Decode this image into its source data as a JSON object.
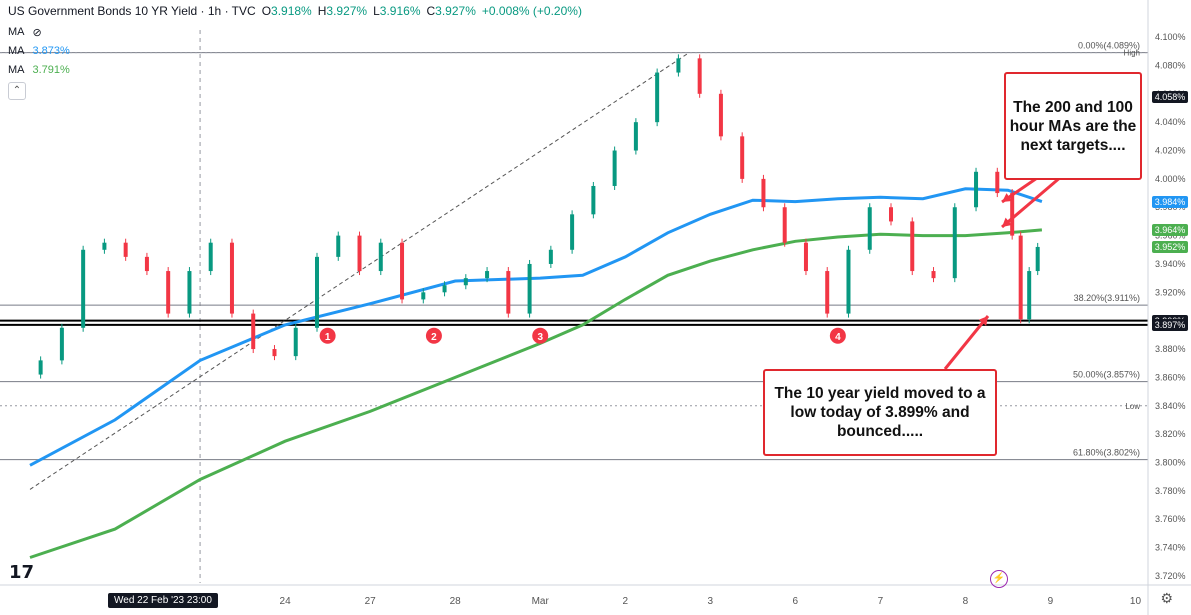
{
  "header": {
    "symbol_title": "US Government Bonds 10 YR Yield · 1h · TVC",
    "open_label": "O",
    "open": "3.918%",
    "high_label": "H",
    "high": "3.927%",
    "low_label": "L",
    "low": "3.916%",
    "close_label": "C",
    "close": "3.927%",
    "change": "+0.008% (+0.20%)"
  },
  "indicators": [
    {
      "label": "MA",
      "value": "",
      "color": "#131722"
    },
    {
      "label": "MA",
      "value": "3.873%",
      "color": "#2196f3"
    },
    {
      "label": "MA",
      "value": "3.791%",
      "color": "#4caf50"
    }
  ],
  "callouts": {
    "ma_targets": "The 200 and 100 hour MAs are the next targets....",
    "low_bounce": "The 10 year yield moved to a low today of 3.899% and bounced....."
  },
  "crosshair_date": "Wed 22 Feb '23  23:00",
  "price_badges": [
    {
      "text": "4.058%",
      "bg": "#131722",
      "value": 4.058
    },
    {
      "text": "3.984%",
      "bg": "#2196f3",
      "value": 3.984
    },
    {
      "text": "3.964%",
      "bg": "#4caf50",
      "value": 3.964
    },
    {
      "text": "3.952%",
      "bg": "#4caf50",
      "value": 3.952
    },
    {
      "text": "3.900%",
      "bg": "#131722",
      "value": 3.9
    },
    {
      "text": "3.897%",
      "bg": "#131722",
      "value": 3.897
    }
  ],
  "chart_data": {
    "type": "line",
    "title": "US Government Bonds 10 YR Yield · 1h · TVC",
    "ylim": [
      3.715,
      4.105
    ],
    "y_ticks": [
      3.72,
      3.74,
      3.76,
      3.78,
      3.8,
      3.82,
      3.84,
      3.86,
      3.88,
      3.9,
      3.92,
      3.94,
      3.96,
      3.98,
      4.0,
      4.02,
      4.04,
      4.06,
      4.08,
      4.1
    ],
    "y_tick_labels": [
      "3.720%",
      "3.740%",
      "3.760%",
      "3.780%",
      "3.800%",
      "3.820%",
      "3.840%",
      "3.860%",
      "3.880%",
      "3.900%",
      "3.920%",
      "3.940%",
      "3.960%",
      "3.980%",
      "4.000%",
      "4.020%",
      "4.040%",
      "4.060%",
      "4.080%",
      "4.100%"
    ],
    "x_ticks": [
      {
        "label": "22",
        "x": 2
      },
      {
        "label": "23",
        "x": 4
      },
      {
        "label": "24",
        "x": 6
      },
      {
        "label": "27",
        "x": 8
      },
      {
        "label": "28",
        "x": 10
      },
      {
        "label": "Mar",
        "x": 12
      },
      {
        "label": "2",
        "x": 14
      },
      {
        "label": "3",
        "x": 16
      },
      {
        "label": "6",
        "x": 18
      },
      {
        "label": "7",
        "x": 20
      },
      {
        "label": "8",
        "x": 22
      },
      {
        "label": "9",
        "x": 24
      },
      {
        "label": "10",
        "x": 26
      }
    ],
    "price": [
      [
        0,
        3.862
      ],
      [
        0.5,
        3.872
      ],
      [
        1,
        3.895
      ],
      [
        1.5,
        3.95
      ],
      [
        2,
        3.955
      ],
      [
        2.5,
        3.945
      ],
      [
        3,
        3.935
      ],
      [
        3.5,
        3.905
      ],
      [
        4,
        3.935
      ],
      [
        4.5,
        3.955
      ],
      [
        5,
        3.905
      ],
      [
        5.5,
        3.88
      ],
      [
        6,
        3.875
      ],
      [
        6.5,
        3.895
      ],
      [
        7,
        3.945
      ],
      [
        7.5,
        3.96
      ],
      [
        8,
        3.935
      ],
      [
        8.5,
        3.955
      ],
      [
        9,
        3.915
      ],
      [
        9.5,
        3.92
      ],
      [
        10,
        3.925
      ],
      [
        10.5,
        3.93
      ],
      [
        11,
        3.935
      ],
      [
        11.5,
        3.905
      ],
      [
        12,
        3.94
      ],
      [
        12.5,
        3.95
      ],
      [
        13,
        3.975
      ],
      [
        13.5,
        3.995
      ],
      [
        14,
        4.02
      ],
      [
        14.5,
        4.04
      ],
      [
        15,
        4.075
      ],
      [
        15.5,
        4.085
      ],
      [
        16,
        4.06
      ],
      [
        16.5,
        4.03
      ],
      [
        17,
        4.0
      ],
      [
        17.5,
        3.98
      ],
      [
        18,
        3.955
      ],
      [
        18.5,
        3.935
      ],
      [
        19,
        3.905
      ],
      [
        19.5,
        3.95
      ],
      [
        20,
        3.98
      ],
      [
        20.5,
        3.97
      ],
      [
        21,
        3.935
      ],
      [
        21.5,
        3.93
      ],
      [
        22,
        3.98
      ],
      [
        22.5,
        4.005
      ],
      [
        23,
        3.99
      ],
      [
        23.2,
        3.96
      ],
      [
        23.4,
        3.901
      ],
      [
        23.6,
        3.935
      ],
      [
        23.8,
        3.952
      ]
    ],
    "series": [
      {
        "name": "MA",
        "color": "#2196f3",
        "values": [
          [
            0,
            3.798
          ],
          [
            2,
            3.83
          ],
          [
            4,
            3.872
          ],
          [
            6,
            3.897
          ],
          [
            8,
            3.912
          ],
          [
            10,
            3.928
          ],
          [
            12,
            3.93
          ],
          [
            13,
            3.932
          ],
          [
            14,
            3.945
          ],
          [
            15,
            3.962
          ],
          [
            16,
            3.975
          ],
          [
            17,
            3.985
          ],
          [
            18,
            3.984
          ],
          [
            19,
            3.986
          ],
          [
            20,
            3.987
          ],
          [
            21,
            3.986
          ],
          [
            22,
            3.993
          ],
          [
            23,
            3.992
          ],
          [
            23.8,
            3.984
          ]
        ]
      },
      {
        "name": "MA",
        "color": "#4caf50",
        "values": [
          [
            0,
            3.733
          ],
          [
            2,
            3.753
          ],
          [
            4,
            3.788
          ],
          [
            6,
            3.815
          ],
          [
            8,
            3.836
          ],
          [
            10,
            3.86
          ],
          [
            12,
            3.884
          ],
          [
            13,
            3.897
          ],
          [
            14,
            3.915
          ],
          [
            15,
            3.932
          ],
          [
            16,
            3.942
          ],
          [
            17,
            3.95
          ],
          [
            18,
            3.956
          ],
          [
            19,
            3.959
          ],
          [
            20,
            3.961
          ],
          [
            21,
            3.96
          ],
          [
            22,
            3.96
          ],
          [
            23,
            3.962
          ],
          [
            23.8,
            3.964
          ]
        ]
      }
    ],
    "fib_levels": [
      {
        "label": "0.00%(4.089%)",
        "value": 4.089
      },
      {
        "label": "38.20%(3.911%)",
        "value": 3.911
      },
      {
        "label": "50.00%(3.857%)",
        "value": 3.857
      },
      {
        "label": "61.80%(3.802%)",
        "value": 3.802
      }
    ],
    "horizontal_lines": [
      {
        "label": "High",
        "value": 4.089
      },
      {
        "label": "Low",
        "value": 3.84
      },
      {
        "label": "",
        "value": 3.9
      },
      {
        "label": "",
        "value": 3.897
      }
    ],
    "markers": [
      {
        "label": "1",
        "x": 7.0,
        "y": 3.895
      },
      {
        "label": "2",
        "x": 9.5,
        "y": 3.895
      },
      {
        "label": "3",
        "x": 12.0,
        "y": 3.895
      },
      {
        "label": "4",
        "x": 19.0,
        "y": 3.895
      }
    ],
    "trendline": [
      [
        0,
        3.781
      ],
      [
        15.5,
        4.089
      ]
    ]
  }
}
